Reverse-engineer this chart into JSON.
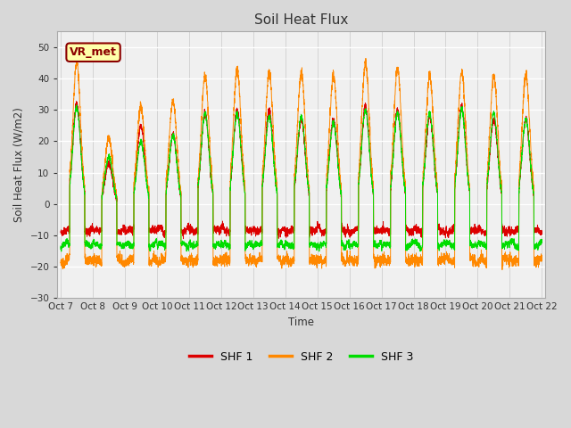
{
  "title": "Soil Heat Flux",
  "ylabel": "Soil Heat Flux (W/m2)",
  "xlabel": "Time",
  "ylim": [
    -30,
    55
  ],
  "yticks": [
    -30,
    -20,
    -10,
    0,
    10,
    20,
    30,
    40,
    50
  ],
  "fig_bg_color": "#d8d8d8",
  "plot_bg_color": "#f0f0f0",
  "grid_color": "#c8c8c8",
  "line_colors": {
    "SHF 1": "#dd0000",
    "SHF 2": "#ff8800",
    "SHF 3": "#00dd00"
  },
  "annotation_text": "VR_met",
  "annotation_color": "#8B0000",
  "annotation_bg": "#ffffaa",
  "n_days": 15,
  "points_per_day": 288,
  "shf1_night": -8.5,
  "shf1_night_noise": 1.5,
  "shf1_day_peaks": [
    32,
    13,
    25,
    22,
    29,
    30,
    30,
    27,
    27,
    31,
    30,
    28,
    31,
    27,
    27
  ],
  "shf2_night": -18.0,
  "shf2_night_noise": 2.0,
  "shf2_day_peaks": [
    45,
    21,
    31,
    33,
    41,
    43,
    42,
    42,
    41,
    45,
    43,
    41,
    42,
    41,
    41
  ],
  "shf3_night": -13.0,
  "shf3_night_noise": 1.2,
  "shf3_day_peaks": [
    31,
    15,
    20,
    22,
    29,
    29,
    28,
    28,
    26,
    30,
    29,
    29,
    30,
    29,
    27
  ],
  "legend_labels": [
    "SHF 1",
    "SHF 2",
    "SHF 3"
  ],
  "xtick_labels": [
    "Oct 7",
    "Oct 8",
    "Oct 9",
    "Oct 10",
    "Oct 11",
    "Oct 12",
    "Oct 13",
    "Oct 14",
    "Oct 15",
    "Oct 16",
    "Oct 17",
    "Oct 18",
    "Oct 19",
    "Oct 20",
    "Oct 21",
    "Oct 22"
  ]
}
